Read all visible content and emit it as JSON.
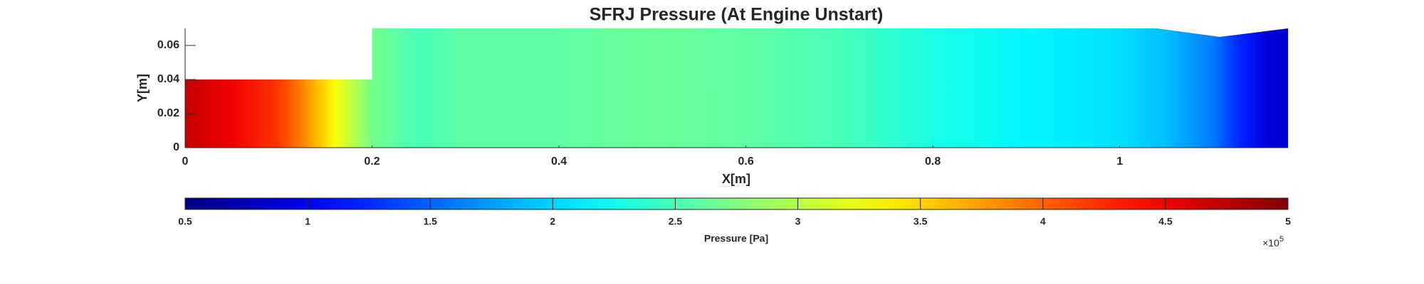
{
  "chart_data": {
    "type": "field",
    "title": "SFRJ Pressure (At Engine Unstart)",
    "xlabel": "X[m]",
    "ylabel": "Y[m]",
    "xlim": [
      0,
      1.18
    ],
    "ylim": [
      0,
      0.07
    ],
    "xticks": [
      0,
      0.2,
      0.4,
      0.6,
      0.8,
      1
    ],
    "yticks": [
      0,
      0.02,
      0.04,
      0.06
    ],
    "wall": {
      "x": [
        0,
        0.2,
        0.2,
        1.04,
        1.107,
        1.18
      ],
      "y": [
        0.04,
        0.04,
        0.07,
        0.07,
        0.065,
        0.07
      ]
    },
    "x": [
      0,
      0.05,
      0.1,
      0.13,
      0.16,
      0.18,
      0.2,
      0.25,
      0.3,
      0.4,
      0.5,
      0.6,
      0.7,
      0.8,
      0.9,
      1.0,
      1.05,
      1.1,
      1.13,
      1.16,
      1.18
    ],
    "values": [
      4.7,
      4.5,
      4.2,
      3.8,
      3.3,
      3.0,
      2.7,
      2.5,
      2.6,
      2.6,
      2.65,
      2.6,
      2.5,
      2.3,
      2.15,
      2.05,
      1.9,
      1.6,
      1.2,
      0.9,
      0.85
    ],
    "colormap": "jet",
    "colorbar": {
      "label": "Pressure [Pa]",
      "lim": [
        0.5,
        5
      ],
      "ticks": [
        0.5,
        1,
        1.5,
        2,
        2.5,
        3,
        3.5,
        4,
        4.5,
        5
      ],
      "multiplier": "×10",
      "exponent": "5"
    }
  }
}
